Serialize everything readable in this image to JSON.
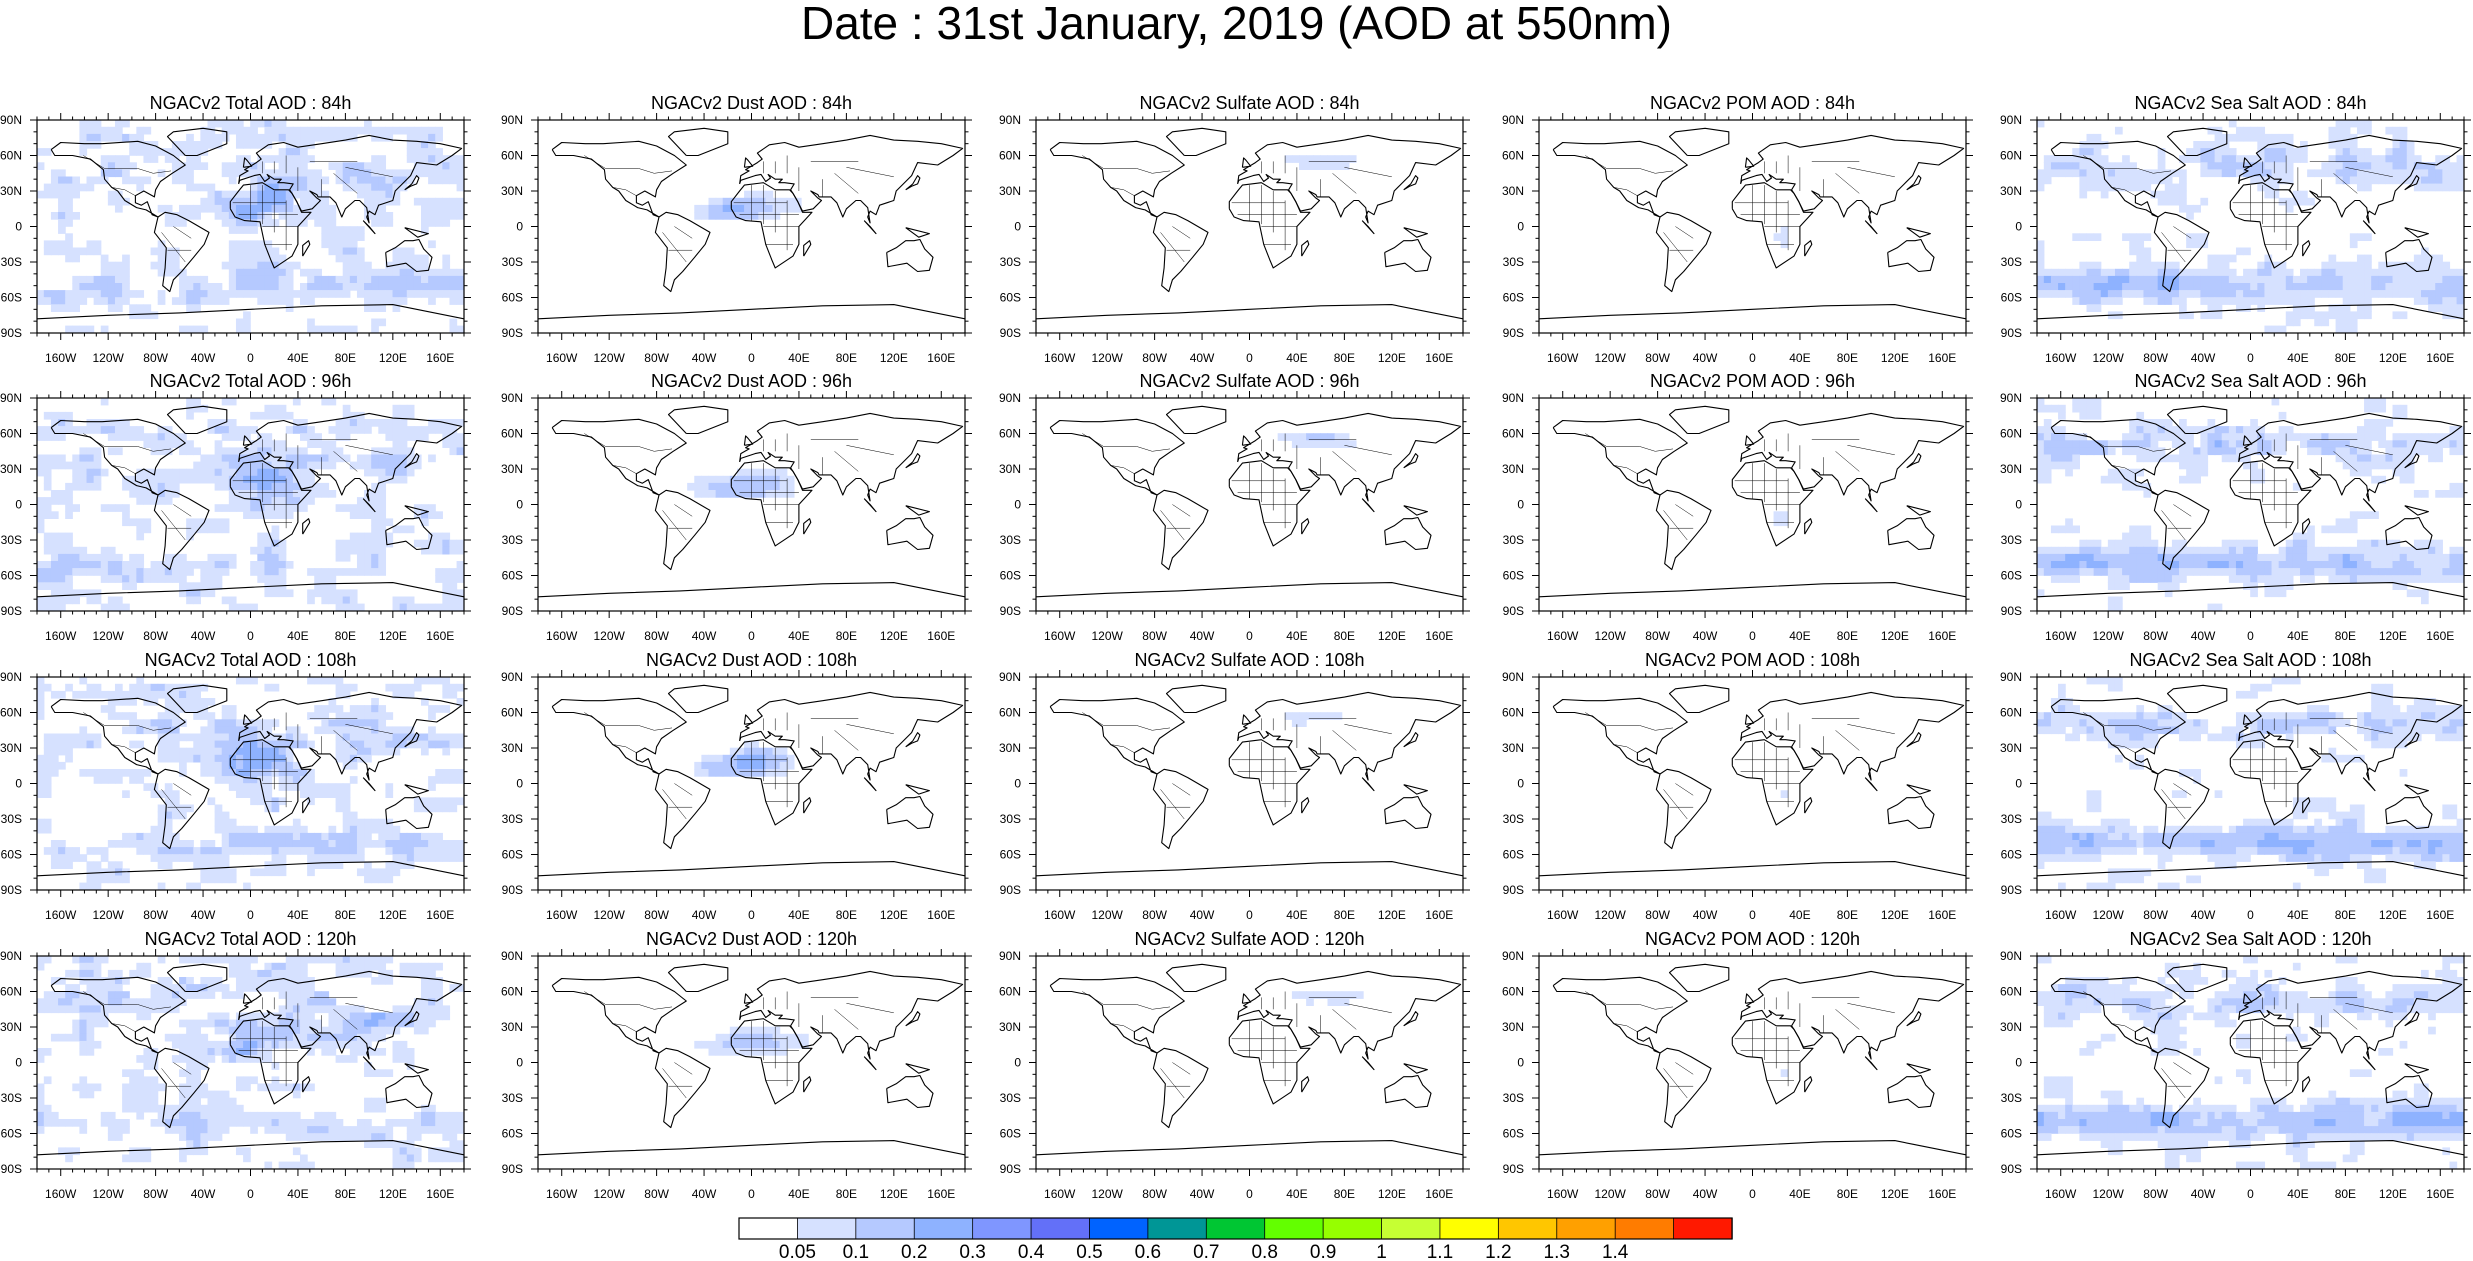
{
  "title": "Date : 31st January, 2019 (AOD at 550nm)",
  "panel_titles": [
    [
      "NGACv2 Total AOD : 84h",
      "NGACv2 Dust AOD : 84h",
      "NGACv2 Sulfate AOD : 84h",
      "NGACv2 POM AOD : 84h",
      "NGACv2 Sea Salt AOD : 84h"
    ],
    [
      "NGACv2 Total AOD : 96h",
      "NGACv2 Dust AOD : 96h",
      "NGACv2 Sulfate AOD : 96h",
      "NGACv2 POM AOD : 96h",
      "NGACv2 Sea Salt AOD : 96h"
    ],
    [
      "NGACv2 Total AOD : 108h",
      "NGACv2 Dust AOD : 108h",
      "NGACv2 Sulfate AOD : 108h",
      "NGACv2 POM AOD : 108h",
      "NGACv2 Sea Salt AOD : 108h"
    ],
    [
      "NGACv2 Total AOD : 120h",
      "NGACv2 Dust AOD : 120h",
      "NGACv2 Sulfate AOD : 120h",
      "NGACv2 POM AOD : 120h",
      "NGACv2 Sea Salt  AOD : 120h"
    ]
  ],
  "lat_labels": [
    "90N",
    "60N",
    "30N",
    "0",
    "30S",
    "60S",
    "90S"
  ],
  "lon_labels": [
    "160W",
    "120W",
    "80W",
    "40W",
    "0",
    "40E",
    "80E",
    "120E",
    "160E"
  ],
  "lon_values": [
    -160,
    -120,
    -80,
    -40,
    0,
    40,
    80,
    120,
    160
  ],
  "lat_values": [
    90,
    60,
    30,
    0,
    -30,
    -60,
    -90
  ],
  "colorbar": {
    "colors": [
      "#ffffff",
      "#d6e1ff",
      "#b5c9ff",
      "#8eb2ff",
      "#7f96ff",
      "#6370f8",
      "#0063ff",
      "#009696",
      "#00c633",
      "#63ff00",
      "#96ff00",
      "#c6ff33",
      "#ffff00",
      "#ffc600",
      "#ffa000",
      "#ff7c00",
      "#ff1900"
    ],
    "labels": [
      "0.05",
      "0.1",
      "0.2",
      "0.3",
      "0.4",
      "0.5",
      "0.6",
      "0.7",
      "0.8",
      "0.9",
      "1",
      "1.1",
      "1.2",
      "1.3",
      "1.4"
    ]
  },
  "field_colors": {
    "light": "#d6e1ff",
    "medium": "#b5c9ff",
    "strong": "#8eb2ff"
  }
}
